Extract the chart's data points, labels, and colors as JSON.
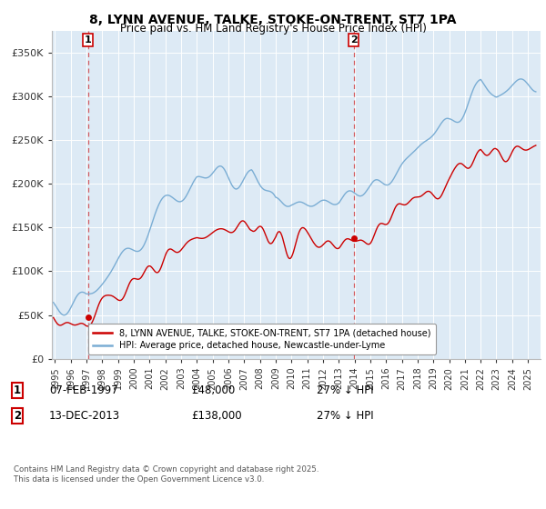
{
  "title_line1": "8, LYNN AVENUE, TALKE, STOKE-ON-TRENT, ST7 1PA",
  "title_line2": "Price paid vs. HM Land Registry's House Price Index (HPI)",
  "red_color": "#cc0000",
  "blue_color": "#7aadd4",
  "plot_bg_color": "#ddeaf5",
  "sale1_date": "07-FEB-1997",
  "sale1_price": 48000,
  "sale1_year": 1997.1,
  "sale2_date": "13-DEC-2013",
  "sale2_price": 138000,
  "sale2_year": 2013.95,
  "legend_line1": "8, LYNN AVENUE, TALKE, STOKE-ON-TRENT, ST7 1PA (detached house)",
  "legend_line2": "HPI: Average price, detached house, Newcastle-under-Lyme",
  "footer": "Contains HM Land Registry data © Crown copyright and database right 2025.\nThis data is licensed under the Open Government Licence v3.0.",
  "ytick_labels": [
    "£0",
    "£50K",
    "£100K",
    "£150K",
    "£200K",
    "£250K",
    "£300K",
    "£350K"
  ],
  "yticks": [
    0,
    50000,
    100000,
    150000,
    200000,
    250000,
    300000,
    350000
  ],
  "ylim": [
    0,
    375000
  ],
  "xlim_start": 1994.8,
  "xlim_end": 2025.8
}
